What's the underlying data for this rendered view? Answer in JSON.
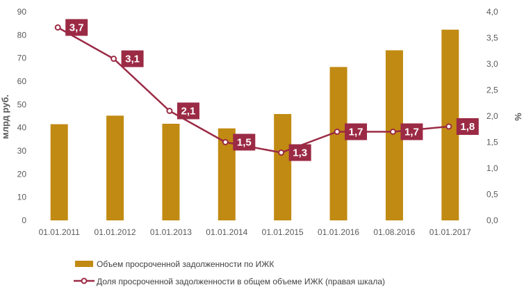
{
  "chart_data": {
    "type": "bar",
    "categories": [
      "01.01.2011",
      "01.01.2012",
      "01.01.2013",
      "01.01.2014",
      "01.01.2015",
      "01.01.2016",
      "01.08.2016",
      "01.01.2017"
    ],
    "series": [
      {
        "name": "Объем просроченной задолженности по ИЖК",
        "type": "bar",
        "axis": "left",
        "color": "#c18a12",
        "values": [
          41.5,
          45.2,
          41.7,
          39.7,
          45.9,
          66.2,
          73.4,
          82.3
        ]
      },
      {
        "name": "Доля просроченной задолженности в общем объеме ИЖК (правая шкала)",
        "type": "line",
        "axis": "right",
        "color": "#9b2a45",
        "values": [
          3.7,
          3.1,
          2.1,
          1.5,
          1.3,
          1.7,
          1.7,
          1.8
        ],
        "labels": [
          "3,7",
          "3,1",
          "2,1",
          "1,5",
          "1,3",
          "1,7",
          "1,7",
          "1,8"
        ]
      }
    ],
    "ylabel": "млрд руб.",
    "y2label": "%",
    "ylim": [
      0,
      90
    ],
    "y2lim": [
      0,
      4
    ],
    "yticks": [
      "0",
      "10",
      "20",
      "30",
      "40",
      "50",
      "60",
      "70",
      "80",
      "90"
    ],
    "y2ticks": [
      "0,0",
      "0,5",
      "1,0",
      "1,5",
      "2,0",
      "2,5",
      "3,0",
      "3,5",
      "4,0"
    ],
    "grid": false,
    "legend_position": "bottom-left"
  }
}
